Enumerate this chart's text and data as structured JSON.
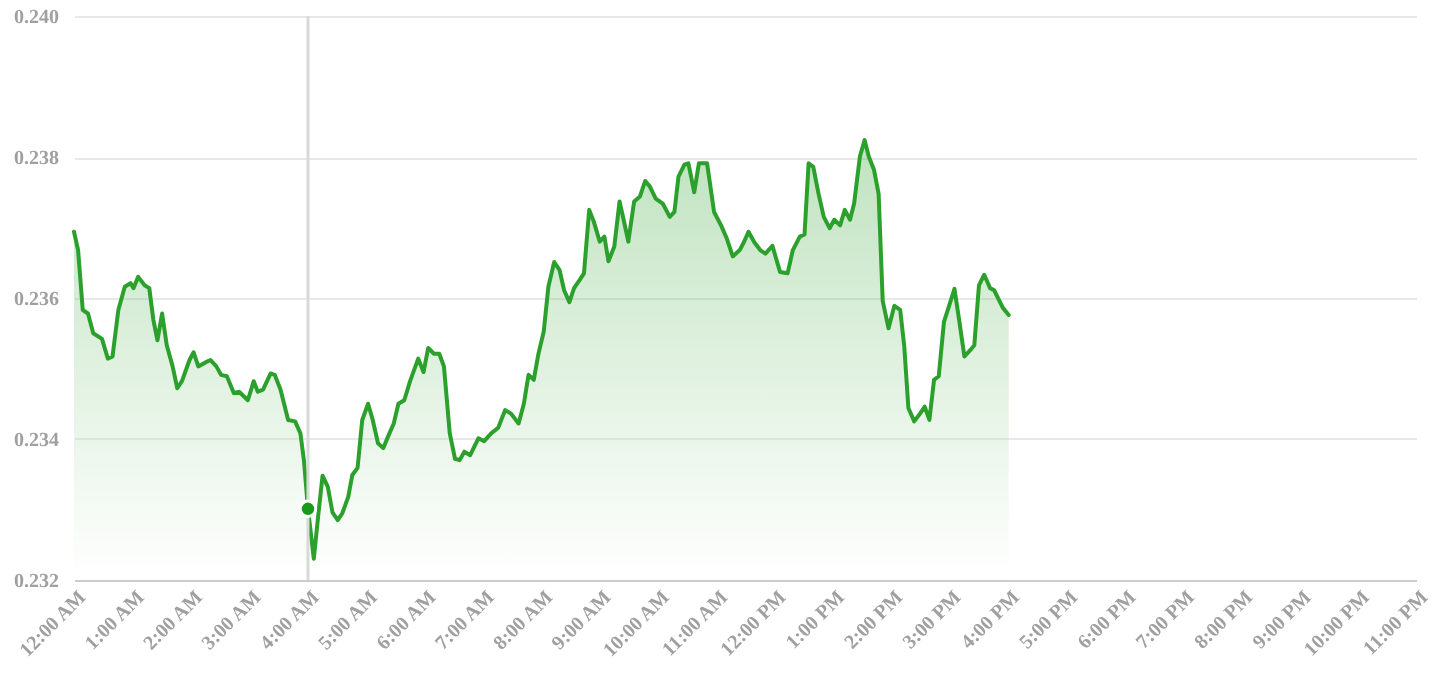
{
  "chart_data": {
    "type": "area",
    "xlim": [
      0,
      23
    ],
    "ylim": [
      0.232,
      0.24
    ],
    "xticks": [
      {
        "value": 0,
        "label": "12:00 AM"
      },
      {
        "value": 1,
        "label": "1:00 AM"
      },
      {
        "value": 2,
        "label": "2:00 AM"
      },
      {
        "value": 3,
        "label": "3:00 AM"
      },
      {
        "value": 4,
        "label": "4:00 AM"
      },
      {
        "value": 5,
        "label": "5:00 AM"
      },
      {
        "value": 6,
        "label": "6:00 AM"
      },
      {
        "value": 7,
        "label": "7:00 AM"
      },
      {
        "value": 8,
        "label": "8:00 AM"
      },
      {
        "value": 9,
        "label": "9:00 AM"
      },
      {
        "value": 10,
        "label": "10:00 AM"
      },
      {
        "value": 11,
        "label": "11:00 AM"
      },
      {
        "value": 12,
        "label": "12:00 PM"
      },
      {
        "value": 13,
        "label": "1:00 PM"
      },
      {
        "value": 14,
        "label": "2:00 PM"
      },
      {
        "value": 15,
        "label": "3:00 PM"
      },
      {
        "value": 16,
        "label": "4:00 PM"
      },
      {
        "value": 17,
        "label": "5:00 PM"
      },
      {
        "value": 18,
        "label": "6:00 PM"
      },
      {
        "value": 19,
        "label": "7:00 PM"
      },
      {
        "value": 20,
        "label": "8:00 PM"
      },
      {
        "value": 21,
        "label": "9:00 PM"
      },
      {
        "value": 22,
        "label": "10:00 PM"
      },
      {
        "value": 23,
        "label": "11:00 PM"
      }
    ],
    "yticks": [
      {
        "value": 0.232,
        "label": "0.232"
      },
      {
        "value": 0.234,
        "label": "0.234"
      },
      {
        "value": 0.236,
        "label": "0.236"
      },
      {
        "value": 0.238,
        "label": "0.238"
      },
      {
        "value": 0.24,
        "label": "0.240"
      }
    ],
    "grid": "y",
    "ref_lines": [
      {
        "axis": "x",
        "value": 4.01,
        "color": "#d9d9d9"
      }
    ],
    "series": [
      {
        "color": "#2ca02c",
        "x": [
          0,
          0.07,
          0.15,
          0.24,
          0.33,
          0.48,
          0.58,
          0.66,
          0.76,
          0.87,
          0.97,
          1.02,
          1.1,
          1.21,
          1.29,
          1.36,
          1.43,
          1.51,
          1.59,
          1.69,
          1.77,
          1.85,
          1.98,
          2.05,
          2.13,
          2.26,
          2.34,
          2.44,
          2.52,
          2.62,
          2.74,
          2.83,
          2.98,
          3.08,
          3.15,
          3.24,
          3.37,
          3.44,
          3.54,
          3.67,
          3.79,
          3.88,
          3.94,
          4.01,
          4.11,
          4.19,
          4.26,
          4.35,
          4.43,
          4.52,
          4.6,
          4.7,
          4.77,
          4.86,
          4.94,
          5.04,
          5.12,
          5.21,
          5.3,
          5.38,
          5.48,
          5.56,
          5.66,
          5.76,
          5.9,
          5.99,
          6.07,
          6.17,
          6.26,
          6.34,
          6.44,
          6.53,
          6.61,
          6.69,
          6.79,
          6.93,
          7.03,
          7.15,
          7.27,
          7.39,
          7.49,
          7.62,
          7.71,
          7.79,
          7.88,
          7.96,
          8.05,
          8.13,
          8.23,
          8.32,
          8.4,
          8.49,
          8.57,
          8.67,
          8.74,
          8.83,
          8.91,
          9.01,
          9.09,
          9.16,
          9.26,
          9.35,
          9.42,
          9.5,
          9.6,
          9.7,
          9.79,
          9.87,
          9.97,
          10.09,
          10.21,
          10.29,
          10.36,
          10.46,
          10.53,
          10.63,
          10.71,
          10.85,
          10.97,
          11.09,
          11.19,
          11.29,
          11.41,
          11.48,
          11.56,
          11.66,
          11.76,
          11.85,
          11.97,
          12.1,
          12.23,
          12.32,
          12.44,
          12.52,
          12.59,
          12.67,
          12.76,
          12.85,
          12.95,
          13.03,
          13.13,
          13.21,
          13.3,
          13.37,
          13.47,
          13.55,
          13.62,
          13.71,
          13.79,
          13.86,
          13.96,
          14.06,
          14.16,
          14.23,
          14.3,
          14.4,
          14.5,
          14.58,
          14.66,
          14.74,
          14.82,
          14.91,
          15.01,
          15.09,
          15.17,
          15.26,
          15.36,
          15.43,
          15.51,
          15.6,
          15.7,
          15.77,
          15.92,
          16.02
        ],
        "values": [
          0.23694,
          0.23668,
          0.23583,
          0.23578,
          0.2355,
          0.23542,
          0.23514,
          0.23517,
          0.23583,
          0.23616,
          0.23621,
          0.23614,
          0.2363,
          0.23618,
          0.23614,
          0.23569,
          0.2354,
          0.23578,
          0.23533,
          0.23503,
          0.23472,
          0.23482,
          0.23512,
          0.23523,
          0.23503,
          0.23509,
          0.23512,
          0.23503,
          0.23491,
          0.23489,
          0.23465,
          0.23467,
          0.23455,
          0.23482,
          0.23467,
          0.2347,
          0.23493,
          0.23491,
          0.2347,
          0.23427,
          0.23425,
          0.23408,
          0.2337,
          0.23301,
          0.2323,
          0.23295,
          0.23348,
          0.23332,
          0.23296,
          0.23285,
          0.23295,
          0.23318,
          0.23349,
          0.23359,
          0.23427,
          0.2345,
          0.23427,
          0.23394,
          0.23387,
          0.23403,
          0.23422,
          0.2345,
          0.23455,
          0.23482,
          0.23514,
          0.23495,
          0.23529,
          0.23521,
          0.23521,
          0.23503,
          0.23408,
          0.23372,
          0.2337,
          0.23382,
          0.23377,
          0.23401,
          0.23397,
          0.23408,
          0.23416,
          0.23441,
          0.23436,
          0.23422,
          0.2345,
          0.23491,
          0.23484,
          0.23521,
          0.23552,
          0.23616,
          0.23651,
          0.2364,
          0.23611,
          0.23594,
          0.23614,
          0.23626,
          0.23635,
          0.23725,
          0.23708,
          0.2368,
          0.23687,
          0.23652,
          0.23673,
          0.23737,
          0.23711,
          0.2368,
          0.23737,
          0.23744,
          0.23766,
          0.23758,
          0.23741,
          0.23734,
          0.23715,
          0.23722,
          0.23772,
          0.23789,
          0.23791,
          0.2375,
          0.23791,
          0.23791,
          0.23722,
          0.23703,
          0.23684,
          0.23659,
          0.23668,
          0.23679,
          0.23694,
          0.23679,
          0.23668,
          0.23663,
          0.23674,
          0.23637,
          0.23635,
          0.23668,
          0.23687,
          0.2369,
          0.23791,
          0.23786,
          0.23748,
          0.23715,
          0.23699,
          0.23711,
          0.23703,
          0.23725,
          0.23711,
          0.23734,
          0.23801,
          0.23824,
          0.23801,
          0.23782,
          0.23748,
          0.23596,
          0.23557,
          0.23589,
          0.23583,
          0.23531,
          0.23444,
          0.23425,
          0.23436,
          0.23446,
          0.23427,
          0.23484,
          0.23489,
          0.23566,
          0.23592,
          0.23613,
          0.23569,
          0.23517,
          0.23526,
          0.23533,
          0.23618,
          0.23633,
          0.23614,
          0.23611,
          0.23586,
          0.23576
        ]
      },
      {
        "type": "scatter",
        "color": "#1a9a1a",
        "x": [
          4.01
        ],
        "values": [
          0.23301
        ]
      }
    ]
  }
}
